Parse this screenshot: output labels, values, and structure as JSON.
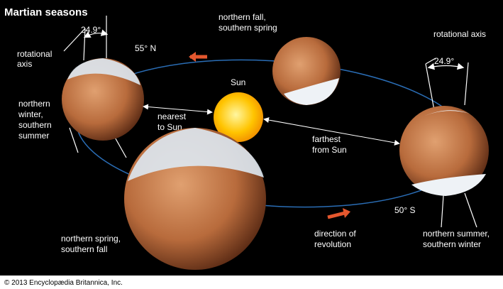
{
  "title": "Martian seasons",
  "left_planet": {
    "tilt": "24.9°",
    "axis_label": [
      "rotational",
      "axis"
    ],
    "latitude": "55° N",
    "season": [
      "northern",
      "winter,",
      "southern",
      "summer"
    ]
  },
  "top_planet": {
    "season": [
      "northern fall,",
      "southern spring"
    ]
  },
  "right_planet": {
    "axis_label": "rotational axis",
    "tilt": "24.9°",
    "latitude": "50° S",
    "season": [
      "northern summer,",
      "southern winter"
    ]
  },
  "bottom_planet": {
    "season": [
      "northern spring,",
      "southern fall"
    ]
  },
  "sun": "Sun",
  "nearest": [
    "nearest",
    "to Sun"
  ],
  "farthest": [
    "farthest",
    "from Sun"
  ],
  "direction": [
    "direction of",
    "revolution"
  ],
  "footer": "© 2013 Encyclopædia Britannica, Inc."
}
